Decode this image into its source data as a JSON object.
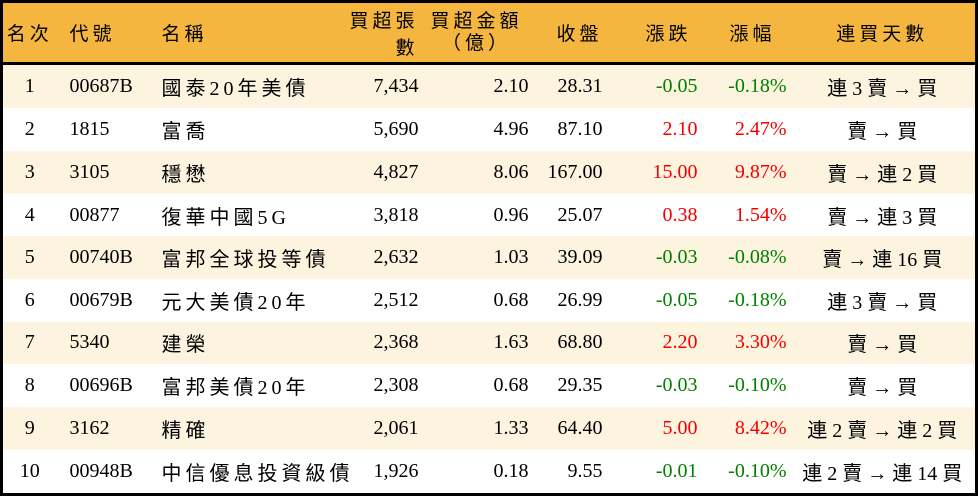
{
  "colors": {
    "header_bg": "#f4b63f",
    "stripe_bg": "#fcf4df",
    "up": "#f50000",
    "down": "#008000",
    "border": "#000000"
  },
  "chart_data": {
    "type": "table",
    "columns": [
      {
        "key": "rank",
        "label": "名次"
      },
      {
        "key": "code",
        "label": "代號"
      },
      {
        "key": "name",
        "label": "名稱"
      },
      {
        "key": "volume",
        "label": "買超張數"
      },
      {
        "key": "amount",
        "label": "買超金額",
        "label2": "（億）"
      },
      {
        "key": "close",
        "label": "收盤"
      },
      {
        "key": "change",
        "label": "漲跌"
      },
      {
        "key": "change_pct",
        "label": "漲幅"
      },
      {
        "key": "streak",
        "label": "連買天數"
      }
    ],
    "rows": [
      {
        "rank": "1",
        "code": "00687B",
        "name": "國泰20年美債",
        "volume": "7,434",
        "amount": "2.10",
        "close": "28.31",
        "change": "-0.05",
        "change_pct": "-0.18%",
        "streak": "連 3 賣 → 買",
        "trend": "down"
      },
      {
        "rank": "2",
        "code": "1815",
        "name": "富喬",
        "volume": "5,690",
        "amount": "4.96",
        "close": "87.10",
        "change": "2.10",
        "change_pct": "2.47%",
        "streak": "賣 → 買",
        "trend": "up"
      },
      {
        "rank": "3",
        "code": "3105",
        "name": "穩懋",
        "volume": "4,827",
        "amount": "8.06",
        "close": "167.00",
        "change": "15.00",
        "change_pct": "9.87%",
        "streak": "賣 → 連 2 買",
        "trend": "up"
      },
      {
        "rank": "4",
        "code": "00877",
        "name": "復華中國5G",
        "volume": "3,818",
        "amount": "0.96",
        "close": "25.07",
        "change": "0.38",
        "change_pct": "1.54%",
        "streak": "賣 → 連 3 買",
        "trend": "up"
      },
      {
        "rank": "5",
        "code": "00740B",
        "name": "富邦全球投等債",
        "volume": "2,632",
        "amount": "1.03",
        "close": "39.09",
        "change": "-0.03",
        "change_pct": "-0.08%",
        "streak": "賣 → 連 16 買",
        "trend": "down"
      },
      {
        "rank": "6",
        "code": "00679B",
        "name": "元大美債20年",
        "volume": "2,512",
        "amount": "0.68",
        "close": "26.99",
        "change": "-0.05",
        "change_pct": "-0.18%",
        "streak": "連 3 賣 → 買",
        "trend": "down"
      },
      {
        "rank": "7",
        "code": "5340",
        "name": "建榮",
        "volume": "2,368",
        "amount": "1.63",
        "close": "68.80",
        "change": "2.20",
        "change_pct": "3.30%",
        "streak": "賣 → 買",
        "trend": "up"
      },
      {
        "rank": "8",
        "code": "00696B",
        "name": "富邦美債20年",
        "volume": "2,308",
        "amount": "0.68",
        "close": "29.35",
        "change": "-0.03",
        "change_pct": "-0.10%",
        "streak": "賣 → 買",
        "trend": "down"
      },
      {
        "rank": "9",
        "code": "3162",
        "name": "精確",
        "volume": "2,061",
        "amount": "1.33",
        "close": "64.40",
        "change": "5.00",
        "change_pct": "8.42%",
        "streak": "連 2 賣 → 連 2 買",
        "trend": "up"
      },
      {
        "rank": "10",
        "code": "00948B",
        "name": "中信優息投資級債",
        "volume": "1,926",
        "amount": "0.18",
        "close": "9.55",
        "change": "-0.01",
        "change_pct": "-0.10%",
        "streak": "連 2 賣 → 連 14 買",
        "trend": "down"
      }
    ]
  }
}
